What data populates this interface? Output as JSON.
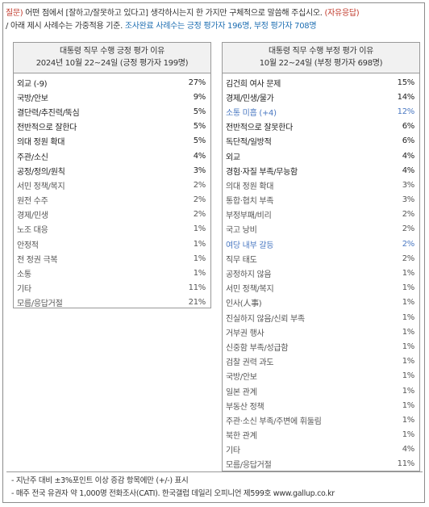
{
  "question": {
    "tag": "질문)",
    "line1": " 어떤 점에서 [잘하고/잘못하고 있다고] 생각하시는지 한 가지만 구체적으로 말씀해 주십시오.",
    "answer_type": "(자유응답)",
    "line2_pre": "/ 아래 제시 사례수는 가중적용 기준. ",
    "line2_highlight": "조사완료 사례수는 긍정 평가자 196명, 부정 평가자 708명"
  },
  "positive": {
    "title": "대통령 직무 수행 긍정 평가 이유",
    "subtitle": "2024년 10월 22~24일 (긍정 평가자 199명)",
    "items": [
      {
        "label": "외교 (-9)",
        "pct": "27%"
      },
      {
        "label": "국방/안보",
        "pct": "9%"
      },
      {
        "label": "결단력/추진력/뚝심",
        "pct": "5%"
      },
      {
        "label": "전반적으로 잘한다",
        "pct": "5%"
      },
      {
        "label": "의대 정원 확대",
        "pct": "5%"
      },
      {
        "label": "주관/소신",
        "pct": "4%"
      },
      {
        "label": "공정/정의/원칙",
        "pct": "3%"
      },
      {
        "label": "서민 정책/복지",
        "pct": "2%"
      },
      {
        "label": "원전 수주",
        "pct": "2%"
      },
      {
        "label": "경제/민생",
        "pct": "2%"
      },
      {
        "label": "노조 대응",
        "pct": "1%"
      },
      {
        "label": "안정적",
        "pct": "1%"
      },
      {
        "label": "전 정권 극복",
        "pct": "1%"
      },
      {
        "label": "소통",
        "pct": "1%"
      },
      {
        "label": "기타",
        "pct": "11%"
      },
      {
        "label": "모름/응답거절",
        "pct": "21%"
      }
    ]
  },
  "negative": {
    "title": "대통령 직무 수행 부정 평가 이유",
    "subtitle": "10월 22~24일 (부정 평가자 698명)",
    "items": [
      {
        "label": "김건희 여사 문제",
        "pct": "15%"
      },
      {
        "label": "경제/민생/물가",
        "pct": "14%"
      },
      {
        "label": "소통 미흡 (+4)",
        "pct": "12%"
      },
      {
        "label": "전반적으로 잘못한다",
        "pct": "6%"
      },
      {
        "label": "독단적/일방적",
        "pct": "6%"
      },
      {
        "label": "외교",
        "pct": "4%"
      },
      {
        "label": "경험·자질 부족/무능함",
        "pct": "4%"
      },
      {
        "label": "의대 정원 확대",
        "pct": "3%"
      },
      {
        "label": "통합·협치 부족",
        "pct": "3%"
      },
      {
        "label": "부정부패/비리",
        "pct": "2%"
      },
      {
        "label": "국고 낭비",
        "pct": "2%"
      },
      {
        "label": "여당 내부 갈등",
        "pct": "2%"
      },
      {
        "label": "직무 태도",
        "pct": "2%"
      },
      {
        "label": "공정하지 않음",
        "pct": "1%"
      },
      {
        "label": "서민 정책/복지",
        "pct": "1%"
      },
      {
        "label": "인사(人事)",
        "pct": "1%"
      },
      {
        "label": "진실하지 않음/신뢰 부족",
        "pct": "1%"
      },
      {
        "label": "거부권 행사",
        "pct": "1%"
      },
      {
        "label": "신중함 부족/성급함",
        "pct": "1%"
      },
      {
        "label": "검찰 권력 과도",
        "pct": "1%"
      },
      {
        "label": "국방/안보",
        "pct": "1%"
      },
      {
        "label": "일본 관계",
        "pct": "1%"
      },
      {
        "label": "부동산 정책",
        "pct": "1%"
      },
      {
        "label": "주관·소신 부족/주변에 휘둘림",
        "pct": "1%"
      },
      {
        "label": "북한 관계",
        "pct": "1%"
      },
      {
        "label": "기타",
        "pct": "4%"
      },
      {
        "label": "모름/응답거절",
        "pct": "11%"
      }
    ]
  },
  "footer": {
    "note1": "- 지난주 대비 ±3%포인트 이상 증감 항목에만 (+/-) 표시",
    "note2": "- 매주 전국 유권자 약 1,000명 전화조사(CATI). 한국갤럽 데일리 오피니언 제599호 www.gallup.co.kr"
  },
  "colors": {
    "tag": "#c0392b",
    "highlight": "#1f6fb2",
    "changed": "#4a78c2"
  }
}
